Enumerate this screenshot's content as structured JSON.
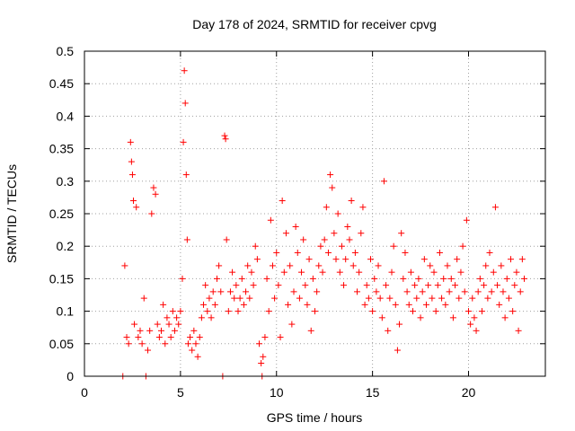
{
  "chart_data": {
    "type": "scatter",
    "title": "Day 178 of 2024, SRMTID for receiver cpvg",
    "xlabel": "GPS time / hours",
    "ylabel": "SRMTID / TECUs",
    "xlim": [
      0,
      24
    ],
    "ylim": [
      0,
      0.5
    ],
    "xticks": [
      0,
      5,
      10,
      15,
      20
    ],
    "yticks": [
      0,
      0.05,
      0.1,
      0.15,
      0.2,
      0.25,
      0.3,
      0.35,
      0.4,
      0.45,
      0.5
    ],
    "grid": true,
    "marker": "plus",
    "color": "#ff0000",
    "series": [
      {
        "name": "SRMTID",
        "points": [
          [
            2.0,
            0.0
          ],
          [
            2.1,
            0.17
          ],
          [
            2.2,
            0.06
          ],
          [
            2.3,
            0.05
          ],
          [
            2.4,
            0.36
          ],
          [
            2.45,
            0.33
          ],
          [
            2.5,
            0.31
          ],
          [
            2.55,
            0.27
          ],
          [
            2.6,
            0.08
          ],
          [
            2.7,
            0.26
          ],
          [
            2.8,
            0.06
          ],
          [
            2.9,
            0.07
          ],
          [
            3.0,
            0.05
          ],
          [
            3.1,
            0.12
          ],
          [
            3.2,
            0.0
          ],
          [
            3.3,
            0.04
          ],
          [
            3.4,
            0.07
          ],
          [
            3.5,
            0.25
          ],
          [
            3.6,
            0.29
          ],
          [
            3.7,
            0.28
          ],
          [
            3.8,
            0.08
          ],
          [
            3.9,
            0.06
          ],
          [
            4.0,
            0.07
          ],
          [
            4.1,
            0.11
          ],
          [
            4.2,
            0.05
          ],
          [
            4.3,
            0.09
          ],
          [
            4.4,
            0.08
          ],
          [
            4.5,
            0.06
          ],
          [
            4.6,
            0.1
          ],
          [
            4.7,
            0.07
          ],
          [
            4.8,
            0.09
          ],
          [
            4.9,
            0.08
          ],
          [
            5.0,
            0.1
          ],
          [
            5.1,
            0.15
          ],
          [
            5.15,
            0.36
          ],
          [
            5.2,
            0.47
          ],
          [
            5.25,
            0.42
          ],
          [
            5.3,
            0.31
          ],
          [
            5.35,
            0.21
          ],
          [
            5.4,
            0.05
          ],
          [
            5.5,
            0.06
          ],
          [
            5.6,
            0.04
          ],
          [
            5.7,
            0.07
          ],
          [
            5.8,
            0.05
          ],
          [
            5.9,
            0.03
          ],
          [
            6.0,
            0.06
          ],
          [
            6.1,
            0.09
          ],
          [
            6.2,
            0.11
          ],
          [
            6.3,
            0.14
          ],
          [
            6.4,
            0.1
          ],
          [
            6.5,
            0.12
          ],
          [
            6.6,
            0.09
          ],
          [
            6.7,
            0.13
          ],
          [
            6.8,
            0.11
          ],
          [
            6.9,
            0.15
          ],
          [
            7.0,
            0.17
          ],
          [
            7.1,
            0.13
          ],
          [
            7.2,
            0.0
          ],
          [
            7.3,
            0.37
          ],
          [
            7.35,
            0.365
          ],
          [
            7.4,
            0.21
          ],
          [
            7.5,
            0.1
          ],
          [
            7.6,
            0.13
          ],
          [
            7.7,
            0.16
          ],
          [
            7.8,
            0.12
          ],
          [
            7.9,
            0.14
          ],
          [
            8.0,
            0.1
          ],
          [
            8.1,
            0.12
          ],
          [
            8.2,
            0.15
          ],
          [
            8.3,
            0.11
          ],
          [
            8.4,
            0.13
          ],
          [
            8.5,
            0.17
          ],
          [
            8.6,
            0.12
          ],
          [
            8.7,
            0.16
          ],
          [
            8.8,
            0.14
          ],
          [
            8.9,
            0.2
          ],
          [
            9.0,
            0.18
          ],
          [
            9.1,
            0.05
          ],
          [
            9.2,
            0.02
          ],
          [
            9.25,
            0.0
          ],
          [
            9.3,
            0.03
          ],
          [
            9.4,
            0.06
          ],
          [
            9.5,
            0.15
          ],
          [
            9.6,
            0.1
          ],
          [
            9.7,
            0.24
          ],
          [
            9.8,
            0.17
          ],
          [
            9.9,
            0.12
          ],
          [
            10.0,
            0.19
          ],
          [
            10.1,
            0.14
          ],
          [
            10.2,
            0.06
          ],
          [
            10.3,
            0.27
          ],
          [
            10.4,
            0.16
          ],
          [
            10.5,
            0.22
          ],
          [
            10.6,
            0.11
          ],
          [
            10.7,
            0.17
          ],
          [
            10.8,
            0.08
          ],
          [
            10.9,
            0.13
          ],
          [
            11.0,
            0.23
          ],
          [
            11.1,
            0.19
          ],
          [
            11.2,
            0.12
          ],
          [
            11.3,
            0.16
          ],
          [
            11.4,
            0.21
          ],
          [
            11.5,
            0.14
          ],
          [
            11.6,
            0.11
          ],
          [
            11.7,
            0.18
          ],
          [
            11.8,
            0.07
          ],
          [
            11.9,
            0.15
          ],
          [
            12.0,
            0.1
          ],
          [
            12.1,
            0.13
          ],
          [
            12.2,
            0.17
          ],
          [
            12.3,
            0.2
          ],
          [
            12.4,
            0.16
          ],
          [
            12.5,
            0.21
          ],
          [
            12.6,
            0.26
          ],
          [
            12.7,
            0.19
          ],
          [
            12.8,
            0.31
          ],
          [
            12.9,
            0.29
          ],
          [
            13.0,
            0.22
          ],
          [
            13.1,
            0.18
          ],
          [
            13.2,
            0.25
          ],
          [
            13.3,
            0.16
          ],
          [
            13.4,
            0.2
          ],
          [
            13.5,
            0.14
          ],
          [
            13.6,
            0.18
          ],
          [
            13.7,
            0.23
          ],
          [
            13.8,
            0.21
          ],
          [
            13.9,
            0.27
          ],
          [
            14.0,
            0.17
          ],
          [
            14.1,
            0.19
          ],
          [
            14.2,
            0.13
          ],
          [
            14.3,
            0.16
          ],
          [
            14.4,
            0.22
          ],
          [
            14.5,
            0.26
          ],
          [
            14.6,
            0.11
          ],
          [
            14.7,
            0.14
          ],
          [
            14.8,
            0.12
          ],
          [
            14.9,
            0.18
          ],
          [
            15.0,
            0.1
          ],
          [
            15.1,
            0.15
          ],
          [
            15.2,
            0.13
          ],
          [
            15.3,
            0.17
          ],
          [
            15.4,
            0.12
          ],
          [
            15.5,
            0.09
          ],
          [
            15.6,
            0.3
          ],
          [
            15.7,
            0.14
          ],
          [
            15.8,
            0.07
          ],
          [
            15.9,
            0.12
          ],
          [
            16.0,
            0.16
          ],
          [
            16.1,
            0.2
          ],
          [
            16.2,
            0.11
          ],
          [
            16.3,
            0.04
          ],
          [
            16.4,
            0.08
          ],
          [
            16.5,
            0.22
          ],
          [
            16.6,
            0.15
          ],
          [
            16.7,
            0.19
          ],
          [
            16.8,
            0.13
          ],
          [
            16.9,
            0.11
          ],
          [
            17.0,
            0.16
          ],
          [
            17.1,
            0.1
          ],
          [
            17.2,
            0.14
          ],
          [
            17.3,
            0.12
          ],
          [
            17.4,
            0.15
          ],
          [
            17.5,
            0.09
          ],
          [
            17.6,
            0.13
          ],
          [
            17.7,
            0.18
          ],
          [
            17.8,
            0.11
          ],
          [
            17.9,
            0.14
          ],
          [
            18.0,
            0.17
          ],
          [
            18.1,
            0.12
          ],
          [
            18.2,
            0.16
          ],
          [
            18.3,
            0.1
          ],
          [
            18.4,
            0.14
          ],
          [
            18.5,
            0.19
          ],
          [
            18.6,
            0.12
          ],
          [
            18.7,
            0.15
          ],
          [
            18.8,
            0.11
          ],
          [
            18.9,
            0.17
          ],
          [
            19.0,
            0.13
          ],
          [
            19.1,
            0.15
          ],
          [
            19.2,
            0.09
          ],
          [
            19.3,
            0.14
          ],
          [
            19.4,
            0.18
          ],
          [
            19.5,
            0.12
          ],
          [
            19.6,
            0.16
          ],
          [
            19.7,
            0.2
          ],
          [
            19.8,
            0.13
          ],
          [
            19.9,
            0.24
          ],
          [
            20.0,
            0.1
          ],
          [
            20.1,
            0.08
          ],
          [
            20.2,
            0.12
          ],
          [
            20.3,
            0.09
          ],
          [
            20.4,
            0.07
          ],
          [
            20.5,
            0.13
          ],
          [
            20.6,
            0.15
          ],
          [
            20.7,
            0.1
          ],
          [
            20.8,
            0.14
          ],
          [
            20.9,
            0.17
          ],
          [
            21.0,
            0.12
          ],
          [
            21.1,
            0.19
          ],
          [
            21.2,
            0.13
          ],
          [
            21.3,
            0.16
          ],
          [
            21.4,
            0.26
          ],
          [
            21.5,
            0.14
          ],
          [
            21.6,
            0.11
          ],
          [
            21.7,
            0.17
          ],
          [
            21.8,
            0.13
          ],
          [
            21.9,
            0.09
          ],
          [
            22.0,
            0.15
          ],
          [
            22.1,
            0.12
          ],
          [
            22.2,
            0.18
          ],
          [
            22.3,
            0.1
          ],
          [
            22.4,
            0.14
          ],
          [
            22.5,
            0.16
          ],
          [
            22.6,
            0.07
          ],
          [
            22.7,
            0.13
          ],
          [
            22.8,
            0.18
          ],
          [
            22.9,
            0.15
          ]
        ]
      }
    ]
  }
}
